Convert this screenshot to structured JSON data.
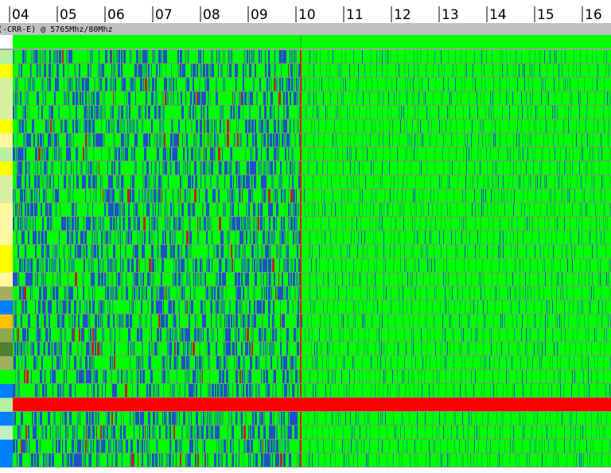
{
  "axis": {
    "labels": [
      "04",
      "05",
      "06",
      "07",
      "08",
      "09",
      "10",
      "11",
      "12",
      "13",
      "14",
      "15",
      "16"
    ]
  },
  "header": {
    "title": "(-CRR-E) @ 5765Mhz/80Mhz"
  }
}
